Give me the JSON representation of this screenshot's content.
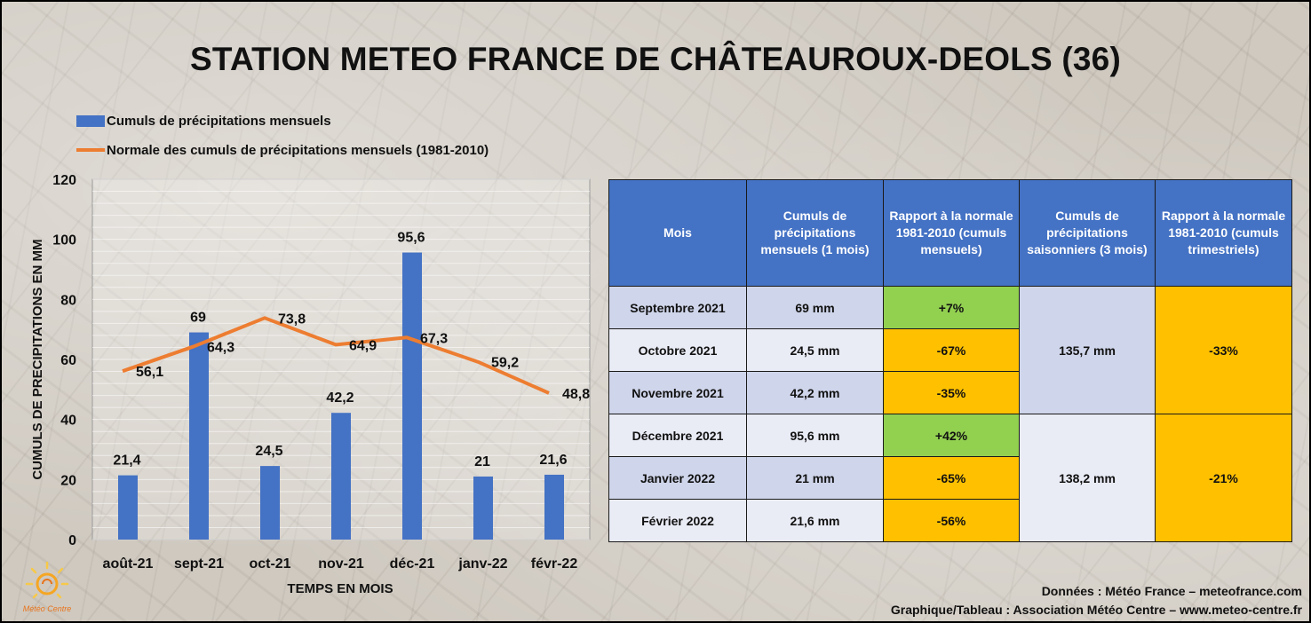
{
  "title": "STATION METEO FRANCE DE CHÂTEAUROUX-DEOLS (36)",
  "colors": {
    "bar": "#4472c4",
    "line": "#ed7d31",
    "header": "#4472c4",
    "green": "#92d050",
    "orange": "#ffc000"
  },
  "chart_data": {
    "type": "bar",
    "categories": [
      "août-21",
      "sept-21",
      "oct-21",
      "nov-21",
      "déc-21",
      "janv-22",
      "févr-22"
    ],
    "series": [
      {
        "name": "Cumuls de précipitations mensuels",
        "type": "bar",
        "values": [
          21.4,
          69,
          24.5,
          42.2,
          95.6,
          21,
          21.6
        ],
        "labels": [
          "21,4",
          "69",
          "24,5",
          "42,2",
          "95,6",
          "21",
          "21,6"
        ]
      },
      {
        "name": "Normale des cumuls de précipitations mensuels (1981-2010)",
        "type": "line",
        "values": [
          56.1,
          64.3,
          73.8,
          64.9,
          67.3,
          59.2,
          48.8
        ],
        "labels": [
          "56,1",
          "64,3",
          "73,8",
          "64,9",
          "67,3",
          "59,2",
          "48,8"
        ]
      }
    ],
    "xlabel": "TEMPS EN MOIS",
    "ylabel": "CUMULS DE PRECIPITATIONS EN MM",
    "ylim": [
      0,
      120
    ],
    "yticks": [
      0,
      20,
      40,
      60,
      80,
      100,
      120
    ],
    "grid": true,
    "legend": "top-left"
  },
  "table": {
    "headers": [
      "Mois",
      "Cumuls de précipitations mensuels (1 mois)",
      "Rapport à la normale 1981-2010 (cumuls mensuels)",
      "Cumuls de précipitations saisonniers (3 mois)",
      "Rapport à la normale 1981-2010 (cumuls trimestriels)"
    ],
    "rows": [
      {
        "month": "Septembre 2021",
        "value": "69 mm",
        "ratio": "+7%",
        "ratio_status": "green"
      },
      {
        "month": "Octobre 2021",
        "value": "24,5 mm",
        "ratio": "-67%",
        "ratio_status": "orange"
      },
      {
        "month": "Novembre 2021",
        "value": "42,2 mm",
        "ratio": "-35%",
        "ratio_status": "orange"
      },
      {
        "month": "Décembre 2021",
        "value": "95,6 mm",
        "ratio": "+42%",
        "ratio_status": "green"
      },
      {
        "month": "Janvier 2022",
        "value": "21 mm",
        "ratio": "-65%",
        "ratio_status": "orange"
      },
      {
        "month": "Février 2022",
        "value": "21,6 mm",
        "ratio": "-56%",
        "ratio_status": "orange"
      }
    ],
    "seasons": [
      {
        "value": "135,7 mm",
        "ratio": "-33%"
      },
      {
        "value": "138,2 mm",
        "ratio": "-21%"
      }
    ]
  },
  "footer": {
    "data_source": "Données : Météo France – meteofrance.com",
    "credits": "Graphique/Tableau : Association Météo Centre – www.meteo-centre.fr"
  },
  "logo_text": "Météo Centre"
}
